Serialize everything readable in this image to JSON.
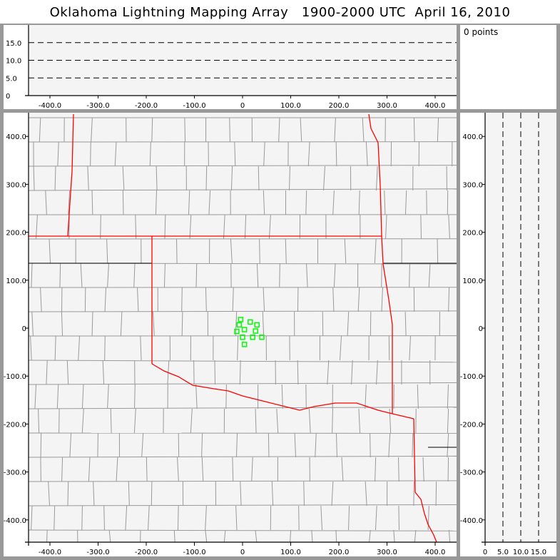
{
  "title": "Oklahoma Lightning Mapping Array   1900-2000 UTC  April 16, 2010",
  "points_label": "0 points",
  "colors": {
    "background": "#f4f4f4",
    "state_border": "#ff0000",
    "county": "#999999",
    "station": "#00ff00",
    "frame": "#999999"
  },
  "chart_data": [
    {
      "type": "line",
      "panel": "altitude-vs-x",
      "xlim": [
        -450,
        450
      ],
      "ylim": [
        0,
        20
      ],
      "xticks": [
        "-400.0",
        "-300.0",
        "-200.0",
        "-100.0",
        "0",
        "100.0",
        "200.0",
        "300.0",
        "400.0"
      ],
      "yticks": [
        "0",
        "5.0",
        "10.0",
        "15.0"
      ],
      "dashed_gridlines_y": [
        5,
        10,
        15
      ]
    },
    {
      "type": "scatter",
      "panel": "plan-view-map",
      "xlim": [
        -445,
        445
      ],
      "ylim": [
        -445,
        445
      ],
      "xticks": [
        "-400.0",
        "-300.0",
        "-200.0",
        "-100.0",
        "0",
        "100.0",
        "200.0",
        "300.0",
        "400.0"
      ],
      "yticks": [
        "-400.0",
        "-300.0",
        "-200.0",
        "-100.0",
        "0",
        "100.0",
        "200.0",
        "300.0",
        "400.0"
      ],
      "stations": {
        "marker": "square",
        "x": [
          -4,
          16,
          30,
          -7,
          -12,
          4,
          27,
          0,
          21,
          40,
          4
        ],
        "y": [
          18,
          13,
          7,
          7,
          -7,
          -3,
          -6,
          -19,
          -19,
          -19,
          -34
        ]
      },
      "points": 0
    },
    {
      "type": "line",
      "panel": "altitude-vs-y",
      "xlim": [
        0,
        20
      ],
      "ylim": [
        -445,
        445
      ],
      "xticks": [
        "0",
        "5.0",
        "10.0",
        "15.0"
      ],
      "yticks": [
        "-400.0",
        "-300.0",
        "-200.0",
        "-100.0",
        "0",
        "100.0",
        "200.0",
        "300.0",
        "400.0"
      ],
      "dashed_gridlines_x": [
        5,
        10,
        15
      ]
    }
  ]
}
